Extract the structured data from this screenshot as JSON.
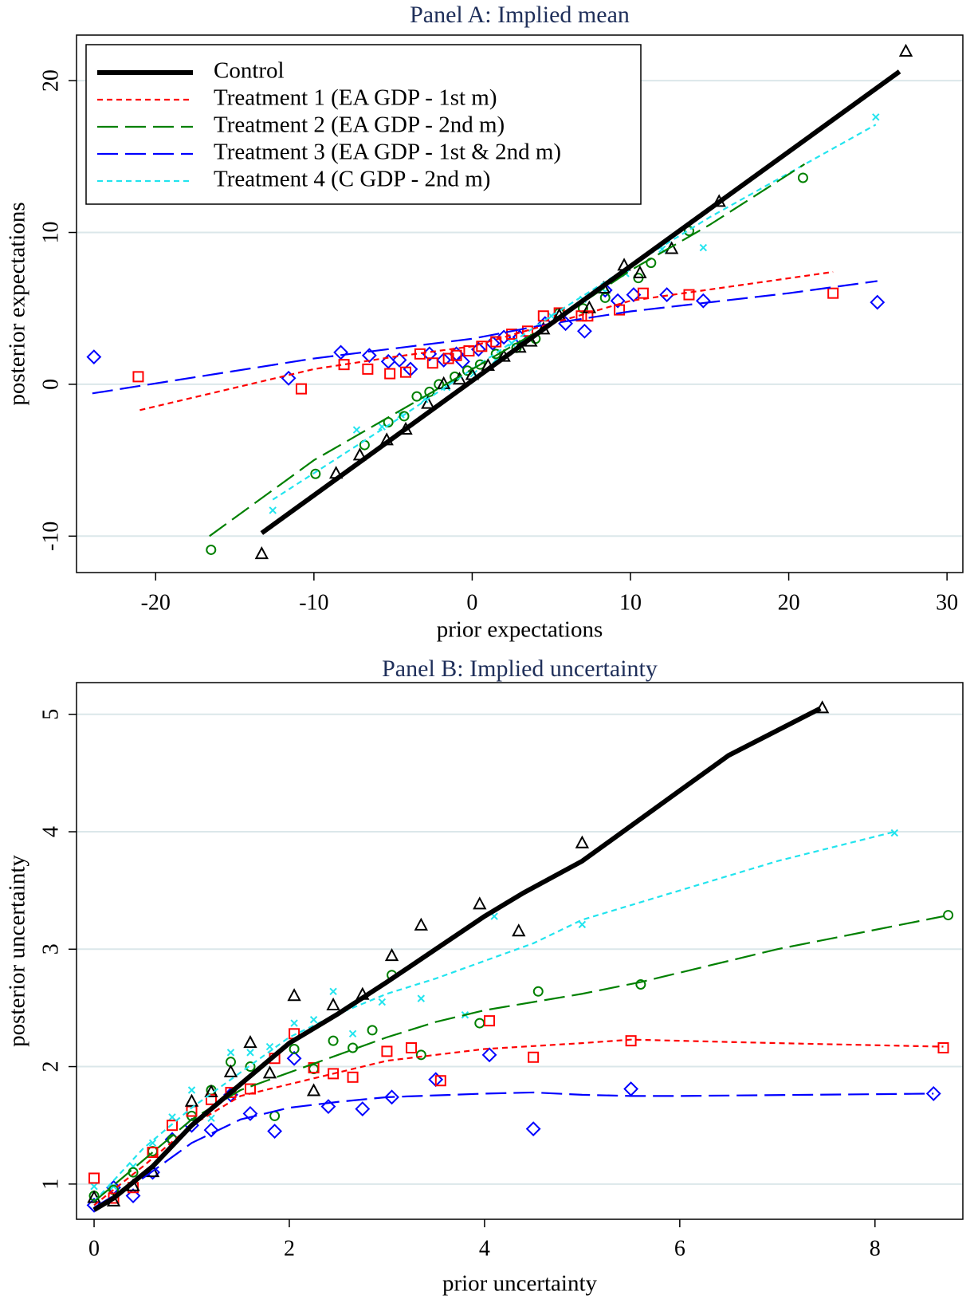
{
  "chart_data": [
    {
      "type": "scatter",
      "title": "Panel A: Implied mean",
      "x_label": "prior expectations",
      "y_label": "posterior expectations",
      "xlim": [
        -25,
        31
      ],
      "ylim": [
        -12.4,
        23
      ],
      "xticks": [
        -20,
        -10,
        0,
        10,
        20,
        30
      ],
      "yticks": [
        -10,
        0,
        10,
        20
      ],
      "grid": true,
      "legend": "upper left",
      "series": [
        {
          "name": "Control",
          "color": "#000000",
          "line_style": "solid",
          "weight": "thick",
          "marker": "triangle",
          "fit_x": [
            -13.3,
            27
          ],
          "fit_y": [
            -9.8,
            20.6
          ],
          "x": [
            -13.3,
            -8.6,
            -7.1,
            -5.4,
            -4.2,
            -2.8,
            -1.8,
            -0.8,
            0,
            1,
            2,
            3,
            3.7,
            4.5,
            5.5,
            7.4,
            8.3,
            9.6,
            10.6,
            12.6,
            15.6,
            27.4
          ],
          "y": [
            -11.2,
            -5.9,
            -4.7,
            -3.7,
            -3.0,
            -1.3,
            0,
            0.3,
            0.6,
            1.2,
            1.8,
            2.4,
            2.8,
            3.6,
            4.5,
            5,
            6.3,
            7.8,
            7.3,
            8.9,
            12,
            21.9
          ]
        },
        {
          "name": "Treatment 1 (EA GDP - 1st m)",
          "color": "#ff0000",
          "line_style": "dash",
          "weight": "thin",
          "marker": "square",
          "fit_x": [
            -21,
            -10,
            -5,
            0,
            5,
            10,
            22.8
          ],
          "fit_y": [
            -1.7,
            1,
            1.8,
            2.5,
            4,
            5.5,
            7.4
          ],
          "x": [
            -21.1,
            -10.8,
            -8.1,
            -6.6,
            -5.2,
            -4.2,
            -3.3,
            -2.5,
            -1.5,
            -1,
            -0.2,
            0.6,
            1.5,
            2.5,
            3.5,
            4.5,
            5.5,
            6.9,
            7.3,
            9.3,
            10.8,
            13.7,
            22.8
          ],
          "y": [
            0.5,
            -0.3,
            1.3,
            1.0,
            0.7,
            0.8,
            2.0,
            1.4,
            1.7,
            1.9,
            2.2,
            2.5,
            2.8,
            3.3,
            3.5,
            4.5,
            4.7,
            4.5,
            4.5,
            4.9,
            6.0,
            5.9,
            6.0
          ]
        },
        {
          "name": "Treatment 2 (EA GDP - 2nd m)",
          "color": "#008000",
          "line_style": "long-dash",
          "weight": "thin",
          "marker": "circle",
          "fit_x": [
            -16.6,
            -10,
            -5,
            0,
            5,
            10,
            15,
            21
          ],
          "fit_y": [
            -10,
            -5,
            -2,
            1,
            4,
            7.5,
            10.5,
            14.5
          ],
          "x": [
            -16.5,
            -9.9,
            -6.8,
            -5.3,
            -4.3,
            -3.5,
            -2.7,
            -2.1,
            -1.1,
            -0.3,
            0.5,
            1.5,
            2.8,
            4.0,
            5.5,
            7,
            8.4,
            10.5,
            11.3,
            13.7,
            20.9
          ],
          "y": [
            -10.9,
            -5.9,
            -4.0,
            -2.5,
            -2.1,
            -0.8,
            -0.5,
            0,
            0.5,
            0.9,
            1.3,
            2,
            2.4,
            3,
            4.7,
            5,
            5.7,
            7.0,
            8,
            10.1,
            13.6
          ]
        },
        {
          "name": "Treatment 3 (EA GDP - 1st & 2nd m)",
          "color": "#0000ff",
          "line_style": "long-dash",
          "weight": "thin",
          "marker": "diamond",
          "fit_x": [
            -24,
            -10,
            0,
            5,
            10,
            20,
            25.6
          ],
          "fit_y": [
            -0.6,
            1.7,
            3,
            4,
            4.8,
            6,
            6.8
          ],
          "x": [
            -23.9,
            -11.6,
            -8.3,
            -6.5,
            -5.3,
            -4.6,
            -3.9,
            -2.7,
            -1.8,
            -1.0,
            -0.6,
            0.4,
            1.3,
            2,
            3.0,
            4.6,
            5.9,
            7.1,
            8.4,
            9.2,
            10.2,
            12.3,
            14.6,
            25.6
          ],
          "y": [
            1.8,
            0.4,
            2.1,
            1.9,
            1.5,
            1.6,
            1.0,
            2.0,
            1.6,
            2.0,
            1.5,
            2.3,
            2.7,
            3.1,
            3.1,
            4.0,
            4.0,
            3.5,
            6.2,
            5.5,
            5.9,
            5.9,
            5.5,
            5.4
          ]
        },
        {
          "name": "Treatment 4 (C GDP - 2nd m)",
          "color": "#22e4ee",
          "line_style": "dash",
          "weight": "thin",
          "marker": "x",
          "fit_x": [
            -12.6,
            -5,
            0,
            5,
            10,
            15,
            25.5
          ],
          "fit_y": [
            -7.6,
            -2.5,
            1,
            4.5,
            7.8,
            11,
            17.1
          ],
          "x": [
            -12.6,
            -7.3,
            -5.7,
            -4.5,
            -3,
            -1.6,
            0.1,
            1.5,
            2.5,
            5,
            7,
            8.4,
            9.7,
            12,
            14.6,
            25.5
          ],
          "y": [
            -8.3,
            -3.0,
            -2.8,
            -2,
            -1,
            -0.2,
            0.7,
            1.6,
            2.7,
            4.5,
            5.6,
            6.1,
            7.3,
            8.9,
            9,
            17.6
          ]
        }
      ]
    },
    {
      "type": "scatter",
      "title": "Panel B: Implied uncertainty",
      "x_label": "prior uncertainty",
      "y_label": "posterior uncertainty",
      "xlim": [
        -0.18,
        8.9
      ],
      "ylim": [
        0.7,
        5.27
      ],
      "xticks": [
        0,
        2,
        4,
        6,
        8
      ],
      "yticks": [
        1,
        2,
        3,
        4,
        5
      ],
      "grid": true,
      "series": [
        {
          "color": "#000000",
          "line_style": "solid",
          "weight": "thick",
          "marker": "triangle",
          "fit_x": [
            0,
            0.2,
            0.6,
            1,
            1.5,
            2,
            2.5,
            3,
            3.5,
            4,
            4.4,
            5,
            5.5,
            6,
            6.5,
            7.44
          ],
          "fit_y": [
            0.78,
            0.88,
            1.15,
            1.5,
            1.85,
            2.2,
            2.45,
            2.72,
            3.0,
            3.28,
            3.48,
            3.75,
            4.05,
            4.35,
            4.65,
            5.05
          ],
          "x": [
            0,
            0.2,
            0.4,
            0.6,
            1,
            1.2,
            1.4,
            1.6,
            1.8,
            2.05,
            2.25,
            2.45,
            2.75,
            3.05,
            3.35,
            3.95,
            4.35,
            5,
            7.46
          ],
          "y": [
            0.88,
            0.85,
            0.98,
            1.1,
            1.7,
            1.78,
            1.95,
            2.2,
            1.94,
            2.6,
            1.79,
            2.52,
            2.61,
            2.94,
            3.2,
            3.38,
            3.15,
            3.9,
            5.05
          ]
        },
        {
          "color": "#ff0000",
          "line_style": "dash",
          "weight": "thin",
          "marker": "square",
          "fit_x": [
            0,
            0.5,
            1,
            1.5,
            2,
            2.5,
            3,
            3.5,
            4,
            5,
            5.5,
            6,
            7,
            8.7
          ],
          "fit_y": [
            0.82,
            1.15,
            1.5,
            1.75,
            1.85,
            1.95,
            2.05,
            2.1,
            2.15,
            2.2,
            2.23,
            2.22,
            2.2,
            2.17
          ],
          "x": [
            0,
            0.2,
            0.4,
            0.6,
            0.8,
            1,
            1.2,
            1.4,
            1.6,
            1.85,
            2.05,
            2.25,
            2.45,
            2.65,
            3,
            3.25,
            3.55,
            4.05,
            4.5,
            5.5,
            8.7
          ],
          "y": [
            1.05,
            0.88,
            0.97,
            1.27,
            1.5,
            1.62,
            1.72,
            1.78,
            1.81,
            2.07,
            2.28,
            1.99,
            1.94,
            1.91,
            2.13,
            2.16,
            1.88,
            2.39,
            2.08,
            2.22,
            2.16
          ]
        },
        {
          "color": "#008000",
          "line_style": "long-dash",
          "weight": "thin",
          "marker": "circle",
          "fit_x": [
            0,
            0.5,
            1,
            1.5,
            2,
            2.5,
            3,
            3.5,
            4,
            5,
            5.6,
            6,
            7,
            8.7
          ],
          "fit_y": [
            0.85,
            1.2,
            1.55,
            1.8,
            1.95,
            2.1,
            2.25,
            2.38,
            2.48,
            2.62,
            2.72,
            2.8,
            3.0,
            3.28
          ],
          "x": [
            0,
            0.2,
            0.4,
            0.6,
            0.8,
            1,
            1.2,
            1.4,
            1.6,
            1.85,
            2.05,
            2.25,
            2.45,
            2.65,
            2.85,
            3.05,
            3.35,
            3.95,
            4.55,
            5.6,
            8.75
          ],
          "y": [
            0.9,
            0.95,
            1.1,
            1.28,
            1.38,
            1.58,
            1.8,
            2.04,
            2.0,
            1.58,
            2.15,
            1.98,
            2.22,
            2.16,
            2.31,
            2.78,
            2.1,
            2.37,
            2.64,
            2.7,
            3.29
          ]
        },
        {
          "color": "#0000ff",
          "line_style": "long-dash",
          "weight": "thin",
          "marker": "diamond",
          "fit_x": [
            0,
            0.5,
            1,
            1.5,
            2,
            2.5,
            3,
            4,
            4.5,
            5,
            5.5,
            6,
            8.6
          ],
          "fit_y": [
            0.8,
            1.05,
            1.35,
            1.55,
            1.65,
            1.7,
            1.74,
            1.77,
            1.78,
            1.76,
            1.75,
            1.75,
            1.77
          ],
          "x": [
            0,
            0.2,
            0.4,
            0.6,
            0.8,
            1,
            1.2,
            1.4,
            1.6,
            1.85,
            2.05,
            2.4,
            2.75,
            3.05,
            3.5,
            4.05,
            4.5,
            5.5,
            8.6
          ],
          "y": [
            0.82,
            0.97,
            0.9,
            1.1,
            1.38,
            1.5,
            1.46,
            1.76,
            1.6,
            1.45,
            2.07,
            1.66,
            1.64,
            1.74,
            1.89,
            2.1,
            1.47,
            1.81,
            1.77
          ]
        },
        {
          "color": "#22e4ee",
          "line_style": "dash",
          "weight": "thin",
          "marker": "x",
          "fit_x": [
            0,
            0.5,
            1,
            1.5,
            2,
            2.5,
            3,
            3.5,
            4,
            4.5,
            5,
            6,
            7,
            8.2
          ],
          "fit_y": [
            0.85,
            1.3,
            1.65,
            1.95,
            2.25,
            2.45,
            2.62,
            2.75,
            2.9,
            3.05,
            3.25,
            3.5,
            3.75,
            4.0
          ],
          "x": [
            0,
            0.2,
            0.4,
            0.6,
            0.8,
            1,
            1.2,
            1.4,
            1.6,
            1.8,
            2.05,
            2.25,
            2.45,
            2.65,
            2.95,
            3.35,
            3.8,
            4.1,
            5,
            8.2
          ],
          "y": [
            0.98,
            0.98,
            1.15,
            1.35,
            1.57,
            1.8,
            1.56,
            2.12,
            2.12,
            2.17,
            2.37,
            2.4,
            2.64,
            2.28,
            2.55,
            2.58,
            2.44,
            3.28,
            3.21,
            3.99
          ]
        }
      ]
    }
  ]
}
